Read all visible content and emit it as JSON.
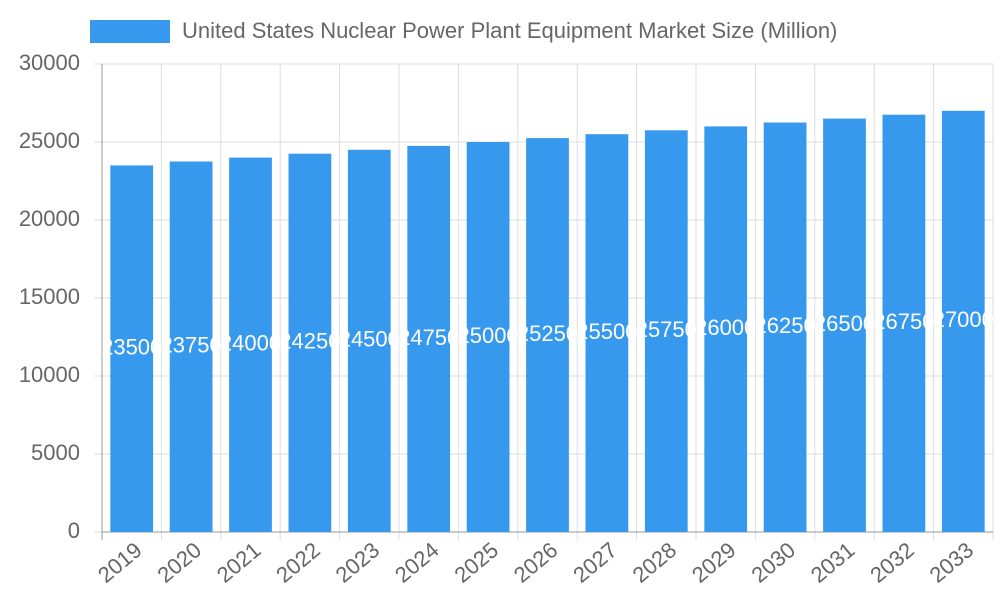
{
  "chart_data": {
    "type": "bar",
    "categories": [
      "2019",
      "2020",
      "2021",
      "2022",
      "2023",
      "2024",
      "2025",
      "2026",
      "2027",
      "2028",
      "2029",
      "2030",
      "2031",
      "2032",
      "2033"
    ],
    "series": [
      {
        "name": "United States Nuclear Power Plant Equipment Market Size (Million)",
        "color": "#3799ee",
        "values": [
          23500,
          23750,
          24000,
          24250,
          24500,
          24750,
          25000,
          25250,
          25500,
          25750,
          26000,
          26250,
          26500,
          26750,
          27000
        ]
      }
    ],
    "ylim": [
      0,
      30000
    ],
    "yticks": [
      0,
      5000,
      10000,
      15000,
      20000,
      25000,
      30000
    ],
    "grid": true
  }
}
